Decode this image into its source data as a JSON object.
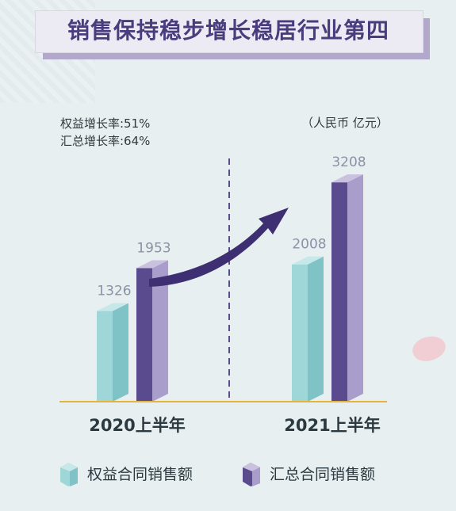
{
  "title": "销售保持稳步增长稳居行业第四",
  "stats": {
    "line1": "权益增长率:51%",
    "line2": "汇总增长率:64%"
  },
  "unit": "（人民币 亿元）",
  "colors": {
    "series1": "#9fd6d8",
    "series2": "#5a4b8f",
    "baseline": "#e7b53a",
    "arrow": "#3d2f72"
  },
  "chart_data": {
    "type": "bar",
    "categories": [
      "2020上半年",
      "2021上半年"
    ],
    "series": [
      {
        "name": "权益合同销售额",
        "values": [
          1326,
          2008
        ]
      },
      {
        "name": "汇总合同销售额",
        "values": [
          1953,
          3208
        ]
      }
    ],
    "value_labels": [
      [
        "1326",
        "2008"
      ],
      [
        "1953",
        "3208"
      ]
    ],
    "ylim": [
      0,
      3500
    ],
    "grid": false,
    "legend_position": "bottom"
  },
  "legend": [
    "权益合同销售额",
    "汇总合同销售额"
  ]
}
